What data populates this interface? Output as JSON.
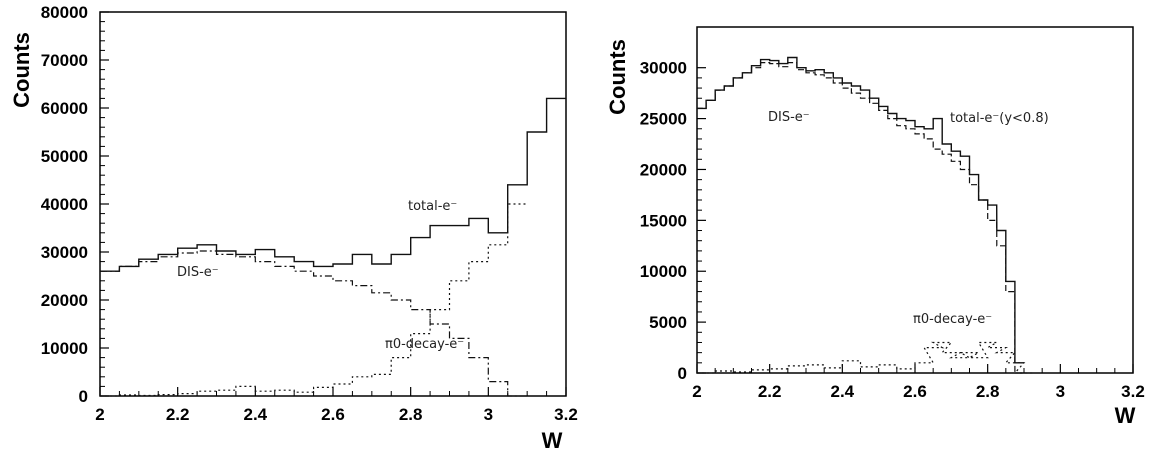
{
  "chart_data": [
    {
      "type": "line",
      "xlabel": "W",
      "ylabel": "Counts",
      "xlim": [
        2,
        3.2
      ],
      "ylim": [
        0,
        80000
      ],
      "xticks": [
        "2",
        "2.2",
        "2.4",
        "2.6",
        "2.8",
        "3",
        "3.2"
      ],
      "yticks": [
        "0",
        "10000",
        "20000",
        "30000",
        "40000",
        "50000",
        "60000",
        "70000",
        "80000"
      ],
      "grid": false,
      "series": [
        {
          "name": "total-e⁻",
          "style": "solid",
          "x": [
            2.0,
            2.05,
            2.1,
            2.15,
            2.2,
            2.25,
            2.3,
            2.35,
            2.4,
            2.45,
            2.5,
            2.55,
            2.6,
            2.65,
            2.7,
            2.75,
            2.8,
            2.85,
            2.9,
            2.95,
            3.0,
            3.05,
            3.1,
            3.15
          ],
          "values": [
            26000,
            27000,
            28500,
            29500,
            30800,
            31500,
            30200,
            29500,
            30500,
            29000,
            28000,
            27000,
            27500,
            29500,
            27500,
            29500,
            33000,
            35500,
            35500,
            37000,
            34000,
            44000,
            55000,
            62000
          ]
        },
        {
          "name": "DIS-e⁻",
          "style": "dash-dot",
          "x": [
            2.0,
            2.05,
            2.1,
            2.15,
            2.2,
            2.25,
            2.3,
            2.35,
            2.4,
            2.45,
            2.5,
            2.55,
            2.6,
            2.65,
            2.7,
            2.75,
            2.8,
            2.85,
            2.9,
            2.95,
            3.0,
            3.05
          ],
          "values": [
            26000,
            27000,
            28000,
            29000,
            29800,
            30200,
            29500,
            29000,
            28000,
            27000,
            26000,
            25000,
            24000,
            23000,
            21500,
            20000,
            18000,
            15000,
            12000,
            8000,
            3000,
            0
          ]
        },
        {
          "name": "π0-decay-e⁻",
          "style": "dotted",
          "x": [
            2.0,
            2.05,
            2.1,
            2.15,
            2.2,
            2.25,
            2.3,
            2.35,
            2.4,
            2.45,
            2.5,
            2.55,
            2.6,
            2.65,
            2.7,
            2.75,
            2.8,
            2.85,
            2.9,
            2.95,
            3.0,
            3.05
          ],
          "values": [
            0,
            200,
            100,
            300,
            500,
            1000,
            1200,
            2000,
            1000,
            1200,
            800,
            1800,
            2500,
            4000,
            4500,
            8000,
            13000,
            18000,
            24000,
            28000,
            31500,
            40000
          ]
        }
      ],
      "annotations": [
        "total-e⁻",
        "DIS-e⁻",
        "π0-decay-e⁻"
      ]
    },
    {
      "type": "line",
      "xlabel": "W",
      "ylabel": "Counts",
      "xlim": [
        2,
        3.2
      ],
      "ylim": [
        0,
        34000
      ],
      "xticks": [
        "2",
        "2.2",
        "2.4",
        "2.6",
        "2.8",
        "3",
        "3.2"
      ],
      "yticks": [
        "0",
        "5000",
        "10000",
        "15000",
        "20000",
        "25000",
        "30000"
      ],
      "grid": false,
      "series": [
        {
          "name": "total-e⁻(y<0.8)",
          "style": "solid",
          "x": [
            2.0,
            2.025,
            2.05,
            2.075,
            2.1,
            2.125,
            2.15,
            2.175,
            2.2,
            2.225,
            2.25,
            2.275,
            2.3,
            2.325,
            2.35,
            2.375,
            2.4,
            2.425,
            2.45,
            2.475,
            2.5,
            2.525,
            2.55,
            2.575,
            2.6,
            2.625,
            2.65,
            2.675,
            2.7,
            2.725,
            2.75,
            2.775,
            2.8,
            2.825,
            2.85,
            2.875
          ],
          "values": [
            26000,
            26800,
            27800,
            28200,
            29000,
            29500,
            30200,
            30800,
            30700,
            30400,
            31000,
            30000,
            29700,
            29800,
            29500,
            29000,
            28500,
            28200,
            27800,
            27000,
            26200,
            25500,
            25000,
            24800,
            24200,
            24000,
            25000,
            22500,
            21800,
            21300,
            19500,
            17000,
            16500,
            14000,
            9000,
            1000
          ]
        },
        {
          "name": "DIS-e⁻",
          "style": "dashed",
          "x": [
            2.0,
            2.025,
            2.05,
            2.075,
            2.1,
            2.125,
            2.15,
            2.175,
            2.2,
            2.225,
            2.25,
            2.275,
            2.3,
            2.325,
            2.35,
            2.375,
            2.4,
            2.425,
            2.45,
            2.475,
            2.5,
            2.525,
            2.55,
            2.575,
            2.6,
            2.625,
            2.65,
            2.675,
            2.7,
            2.725,
            2.75,
            2.775,
            2.8,
            2.825,
            2.85,
            2.875
          ],
          "values": [
            26000,
            26800,
            27800,
            28200,
            29000,
            29500,
            30000,
            30500,
            30400,
            30100,
            30500,
            29800,
            29500,
            29300,
            29000,
            28500,
            28000,
            27500,
            27000,
            26500,
            25800,
            25000,
            24300,
            24000,
            23500,
            23000,
            22000,
            21500,
            20800,
            20000,
            18500,
            17000,
            15000,
            12500,
            8000,
            0
          ]
        },
        {
          "name": "π0-decay-e⁻",
          "style": "dotted",
          "x": [
            2.0,
            2.05,
            2.1,
            2.15,
            2.2,
            2.25,
            2.3,
            2.35,
            2.4,
            2.45,
            2.5,
            2.55,
            2.6,
            2.625,
            2.65,
            2.675,
            2.7,
            2.725,
            2.75,
            2.775,
            2.8,
            2.825,
            2.85,
            2.875
          ],
          "values": [
            0,
            200,
            100,
            300,
            400,
            700,
            800,
            500,
            1200,
            600,
            800,
            400,
            1000,
            2500,
            3000,
            2000,
            1500,
            2000,
            1500,
            3000,
            2500,
            2000,
            1000,
            0
          ]
        }
      ],
      "annotations": [
        "total-e⁻(y<0.8)",
        "DIS-e⁻",
        "π0-decay-e⁻"
      ]
    }
  ]
}
